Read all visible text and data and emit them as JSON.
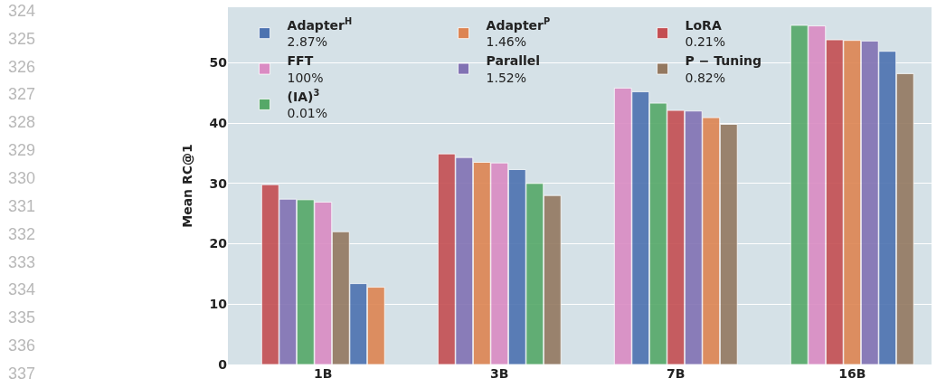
{
  "chart_data": {
    "type": "bar",
    "ylabel": "Mean RC@1",
    "categories": [
      "1B",
      "3B",
      "7B",
      "16B"
    ],
    "series": [
      {
        "name": "Adapter$^{H}$\n2.87%",
        "color": "#4c72b0",
        "values": [
          13.4,
          32.3,
          45.2,
          51.9
        ]
      },
      {
        "name": "Adapter$^{P}$\n1.46%",
        "color": "#dd8452",
        "values": [
          12.8,
          33.5,
          40.9,
          53.7
        ]
      },
      {
        "name": "LoRA\n0.21%",
        "color": "#c44e52",
        "values": [
          29.8,
          34.9,
          42.1,
          53.8
        ]
      },
      {
        "name": "FFT\n100%",
        "color": "#da8bc3",
        "values": [
          26.9,
          33.4,
          45.8,
          56.1
        ]
      },
      {
        "name": "Parallel\n1.52%",
        "color": "#8172b3",
        "values": [
          27.4,
          34.3,
          42.0,
          53.6
        ]
      },
      {
        "name": "P − Tuning\n0.82%",
        "color": "#937860",
        "values": [
          22.0,
          28.0,
          39.8,
          48.2
        ]
      },
      {
        "name": "(IA)$^{3}$\n0.01%",
        "color": "#55a868",
        "values": [
          27.3,
          30.0,
          43.3,
          56.2
        ]
      }
    ],
    "ylim": [
      0,
      59.2
    ],
    "yticks": [
      0,
      10,
      20,
      30,
      40,
      50
    ],
    "grid": "y",
    "legend": "top left",
    "annotations": [
      "324",
      "325",
      "326",
      "327",
      "328",
      "329",
      "330",
      "331",
      "332",
      "333",
      "334",
      "335",
      "336",
      "337"
    ]
  }
}
